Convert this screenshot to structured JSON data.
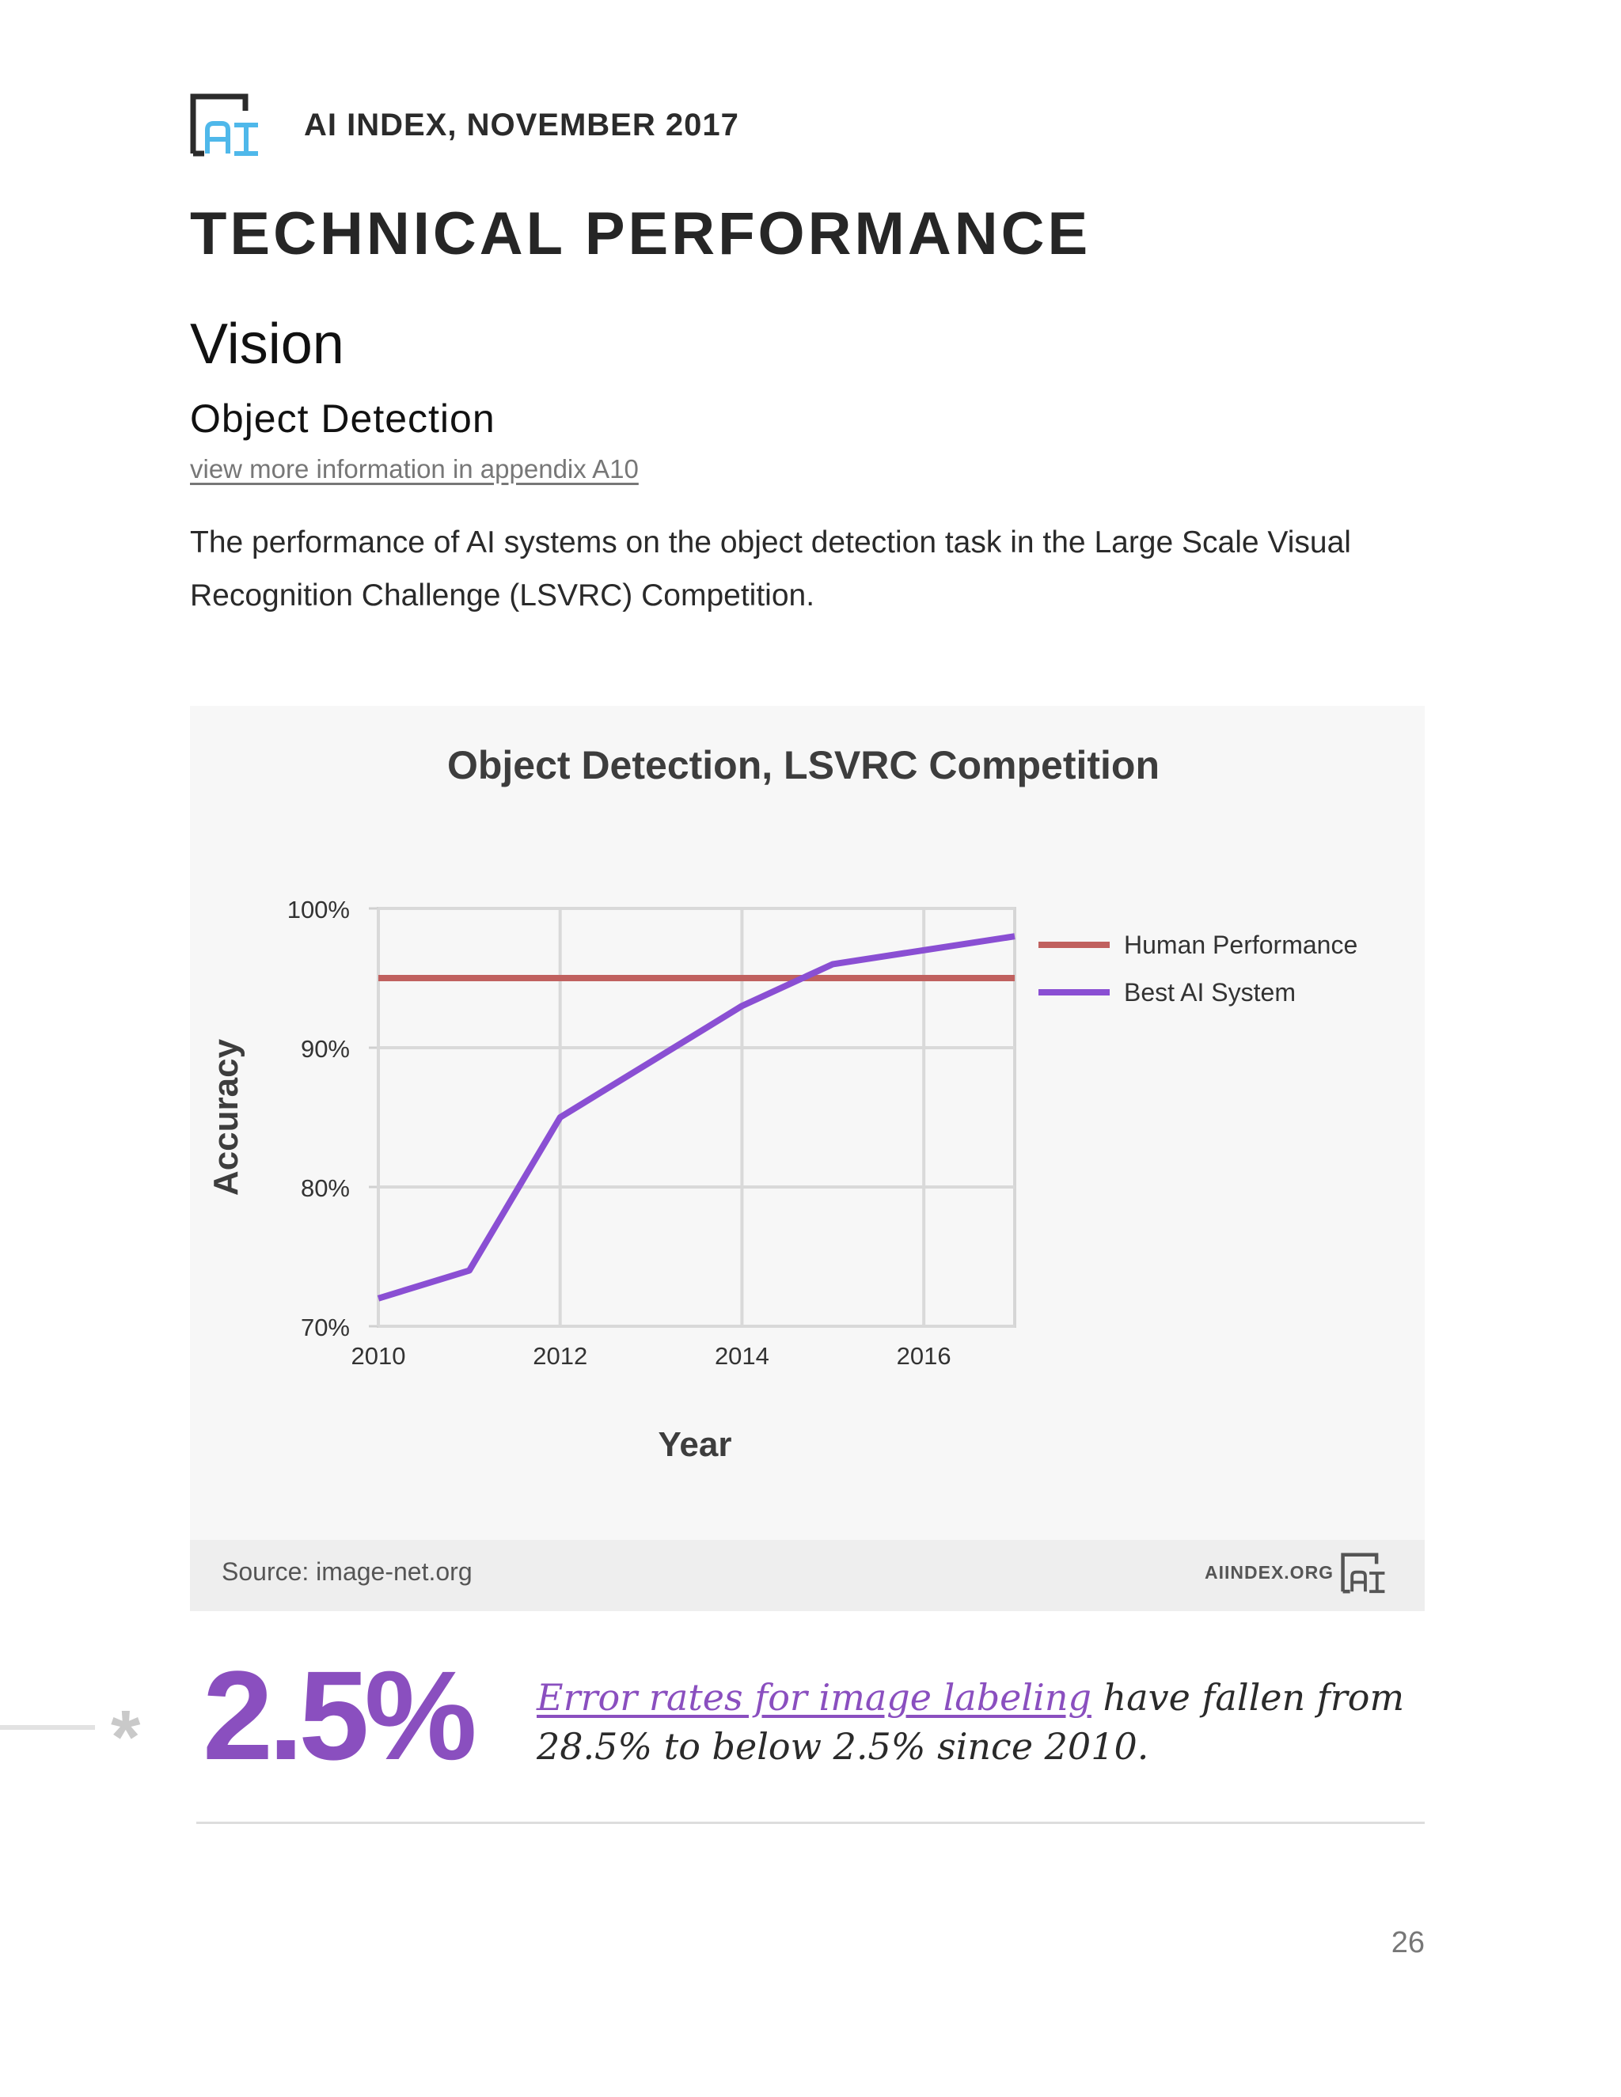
{
  "header": {
    "logo_icon": "ai-index-logo",
    "label": "AI INDEX, NOVEMBER 2017"
  },
  "section_title": "TECHNICAL PERFORMANCE",
  "subsection_title": "Vision",
  "topic_title": "Object Detection",
  "appendix_link": "view more information in appendix A10",
  "description": "The performance of AI systems on the object detection task in the Large Scale Visual Recognition Challenge (LSVRC) Competition.",
  "chart_data": {
    "type": "line",
    "title": "Object Detection, LSVRC Competition",
    "xlabel": "Year",
    "ylabel": "Accuracy",
    "xlim": [
      2010,
      2017
    ],
    "ylim": [
      70,
      100
    ],
    "x_ticks": [
      "2010",
      "2012",
      "2014",
      "2016"
    ],
    "y_ticks": [
      "70%",
      "80%",
      "90%",
      "100%"
    ],
    "grid": true,
    "legend_position": "right",
    "series": [
      {
        "name": "Human Performance",
        "color": "#c0615f",
        "x": [
          2010,
          2017
        ],
        "values": [
          95,
          95
        ]
      },
      {
        "name": "Best AI System",
        "color": "#8a4fd3",
        "x": [
          2010,
          2011,
          2012,
          2013,
          2014,
          2015,
          2016,
          2017
        ],
        "values": [
          72,
          74,
          85,
          89,
          93,
          96,
          97,
          98
        ]
      }
    ]
  },
  "chart_footer": {
    "source": "Source: image-net.org",
    "site": "AIINDEX.ORG"
  },
  "highlight": {
    "value": "2.5%",
    "link_text": "Error rates for image labeling",
    "text_rest": " have fallen from 28.5% to below 2.5% since 2010.",
    "color": "#8a4fbf"
  },
  "page_number": "26"
}
